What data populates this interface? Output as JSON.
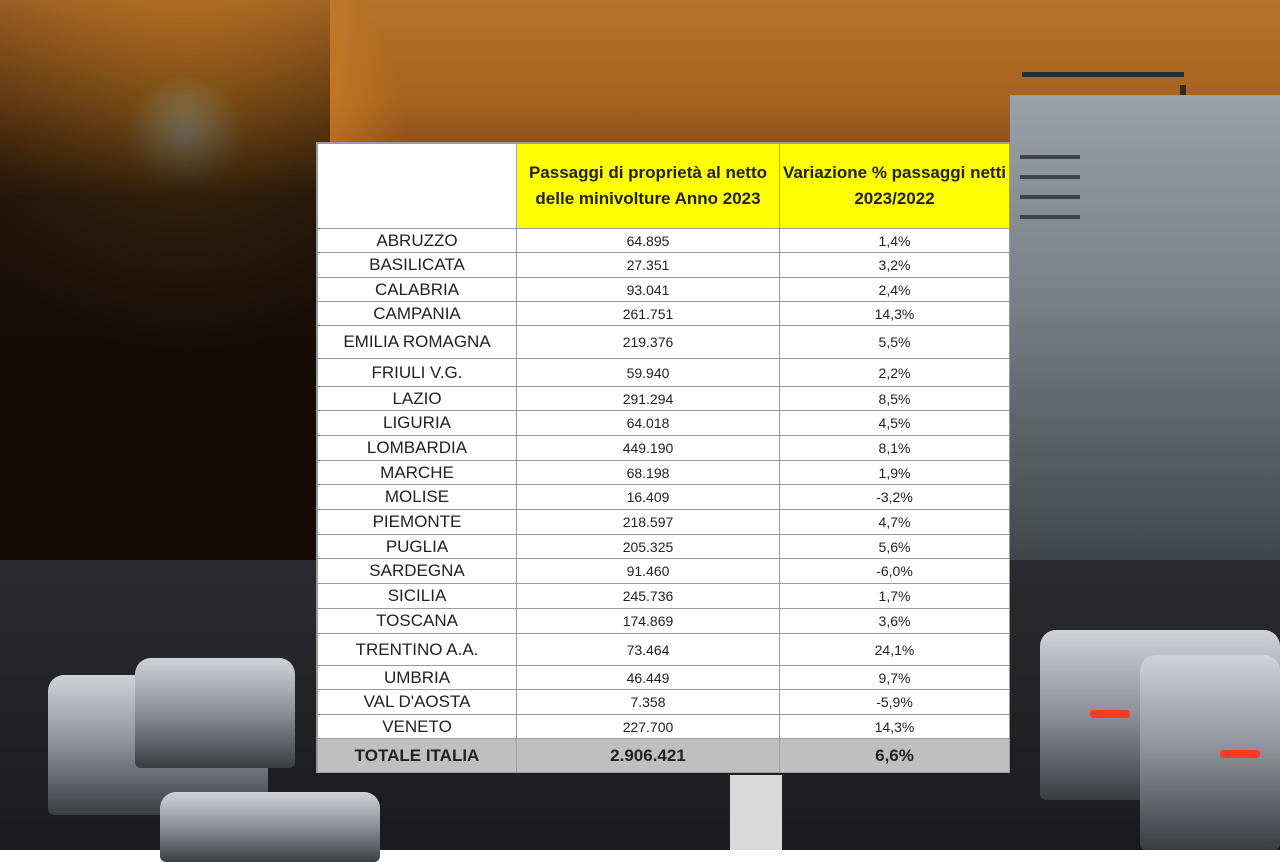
{
  "table": {
    "headers": {
      "region": "",
      "passaggi": "Passaggi di proprietà al netto delle minivolture Anno 2023",
      "variazione": "Variazione % passaggi netti 2023/2022"
    },
    "rows": [
      {
        "region": "ABRUZZO",
        "passaggi": "64.895",
        "variazione": "1,4%"
      },
      {
        "region": "BASILICATA",
        "passaggi": "27.351",
        "variazione": "3,2%"
      },
      {
        "region": "CALABRIA",
        "passaggi": "93.041",
        "variazione": "2,4%"
      },
      {
        "region": "CAMPANIA",
        "passaggi": "261.751",
        "variazione": "14,3%"
      },
      {
        "region": "EMILIA ROMAGNA",
        "passaggi": "219.376",
        "variazione": "5,5%"
      },
      {
        "region": "FRIULI V.G.",
        "passaggi": "59.940",
        "variazione": "2,2%"
      },
      {
        "region": "LAZIO",
        "passaggi": "291.294",
        "variazione": "8,5%"
      },
      {
        "region": "LIGURIA",
        "passaggi": "64.018",
        "variazione": "4,5%"
      },
      {
        "region": "LOMBARDIA",
        "passaggi": "449.190",
        "variazione": "8,1%"
      },
      {
        "region": "MARCHE",
        "passaggi": "68.198",
        "variazione": "1,9%"
      },
      {
        "region": "MOLISE",
        "passaggi": "16.409",
        "variazione": "-3,2%"
      },
      {
        "region": "PIEMONTE",
        "passaggi": "218.597",
        "variazione": "4,7%"
      },
      {
        "region": "PUGLIA",
        "passaggi": "205.325",
        "variazione": "5,6%"
      },
      {
        "region": "SARDEGNA",
        "passaggi": "91.460",
        "variazione": "-6,0%"
      },
      {
        "region": "SICILIA",
        "passaggi": "245.736",
        "variazione": "1,7%"
      },
      {
        "region": "TOSCANA",
        "passaggi": "174.869",
        "variazione": "3,6%"
      },
      {
        "region": "TRENTINO A.A.",
        "passaggi": "73.464",
        "variazione": "24,1%"
      },
      {
        "region": "UMBRIA",
        "passaggi": "46.449",
        "variazione": "9,7%"
      },
      {
        "region": "VAL D'AOSTA",
        "passaggi": "7.358",
        "variazione": "-5,9%"
      },
      {
        "region": "VENETO",
        "passaggi": "227.700",
        "variazione": "14,3%"
      }
    ],
    "total": {
      "region": "TOTALE ITALIA",
      "passaggi": "2.906.421",
      "variazione": "6,6%"
    }
  },
  "colors": {
    "header_highlight": "#ffff00",
    "total_row": "#bfbfbf"
  }
}
